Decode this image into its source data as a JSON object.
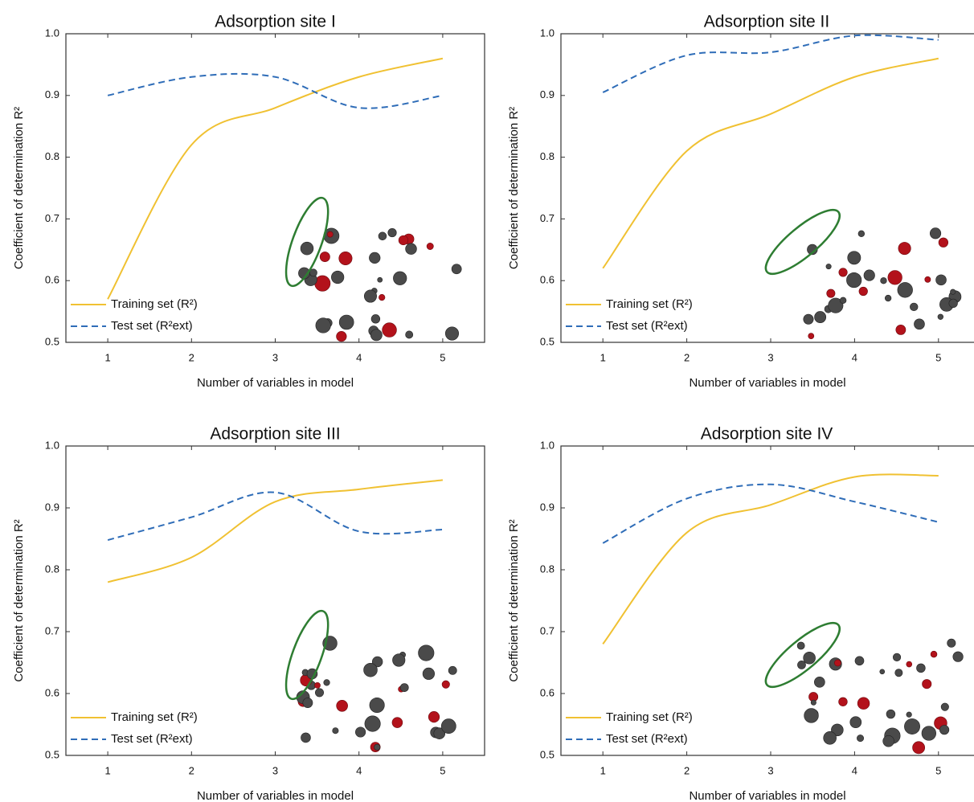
{
  "chart_data": [
    {
      "type": "line",
      "title": "Adsorption site I",
      "xlabel": "Number of variables in model",
      "ylabel": "Coefficient of determination R²",
      "x": [
        1,
        2,
        3,
        4,
        5
      ],
      "xlim": [
        0.5,
        5.5
      ],
      "xticks": [
        1,
        2,
        3,
        4,
        5
      ],
      "ylim": [
        0.5,
        1.0
      ],
      "yticks": [
        0.5,
        0.6,
        0.7,
        0.8,
        0.9,
        {
          "value": 1.0,
          "label": "1.0"
        }
      ],
      "series": [
        {
          "name": "Training set (R²)",
          "color": "#f0c132",
          "style": "solid",
          "values": [
            0.57,
            0.82,
            0.88,
            0.93,
            0.96
          ]
        },
        {
          "name": "Test set (R²ext)",
          "color": "#2f6db8",
          "style": "dashed",
          "values": [
            0.9,
            0.93,
            0.93,
            0.88,
            0.9
          ]
        }
      ]
    },
    {
      "type": "line",
      "title": "Adsorption site II",
      "xlabel": "Number of variables in model",
      "ylabel": "Coefficient of determination R²",
      "x": [
        1,
        2,
        3,
        4,
        5
      ],
      "xlim": [
        0.5,
        5.5
      ],
      "xticks": [
        1,
        2,
        3,
        4,
        5
      ],
      "ylim": [
        0.5,
        1.0
      ],
      "yticks": [
        0.5,
        0.6,
        0.7,
        0.8,
        0.9,
        {
          "value": 1.0,
          "label": "1.0"
        }
      ],
      "series": [
        {
          "name": "Training set (R²)",
          "color": "#f0c132",
          "style": "solid",
          "values": [
            0.62,
            0.81,
            0.87,
            0.93,
            0.96
          ]
        },
        {
          "name": "Test set (R²ext)",
          "color": "#2f6db8",
          "style": "dashed",
          "values": [
            0.905,
            0.965,
            0.97,
            0.997,
            0.99
          ]
        }
      ]
    },
    {
      "type": "line",
      "title": "Adsorption site III",
      "xlabel": "Number of variables in model",
      "ylabel": "Coefficient of determination R²",
      "x": [
        1,
        2,
        3,
        4,
        5
      ],
      "xlim": [
        0.5,
        5.5
      ],
      "xticks": [
        1,
        2,
        3,
        4,
        5
      ],
      "ylim": [
        0.5,
        1.0
      ],
      "yticks": [
        0.5,
        0.6,
        0.7,
        0.8,
        0.9,
        {
          "value": 1.0,
          "label": "1.0"
        }
      ],
      "series": [
        {
          "name": "Training set (R²)",
          "color": "#f0c132",
          "style": "solid",
          "values": [
            0.78,
            0.82,
            0.91,
            0.93,
            0.945
          ]
        },
        {
          "name": "Test set (R²ext)",
          "color": "#2f6db8",
          "style": "dashed",
          "values": [
            0.848,
            0.885,
            0.925,
            0.862,
            0.865
          ]
        }
      ]
    },
    {
      "type": "line",
      "title": "Adsorption site IV",
      "xlabel": "Number of variables in model",
      "ylabel": "Coefficient of determination R²",
      "x": [
        1,
        2,
        3,
        4,
        5
      ],
      "xlim": [
        0.5,
        5.5
      ],
      "xticks": [
        1,
        2,
        3,
        4,
        5
      ],
      "ylim": [
        0.5,
        1.0
      ],
      "yticks": [
        0.5,
        0.6,
        0.7,
        0.8,
        0.9,
        {
          "value": 1.0,
          "label": "1.0"
        }
      ],
      "series": [
        {
          "name": "Training set (R²)",
          "color": "#f0c132",
          "style": "solid",
          "values": [
            0.68,
            0.86,
            0.905,
            0.95,
            0.952
          ]
        },
        {
          "name": "Test set (R²ext)",
          "color": "#2f6db8",
          "style": "dashed",
          "values": [
            0.843,
            0.915,
            0.938,
            0.91,
            0.877
          ]
        }
      ]
    }
  ]
}
